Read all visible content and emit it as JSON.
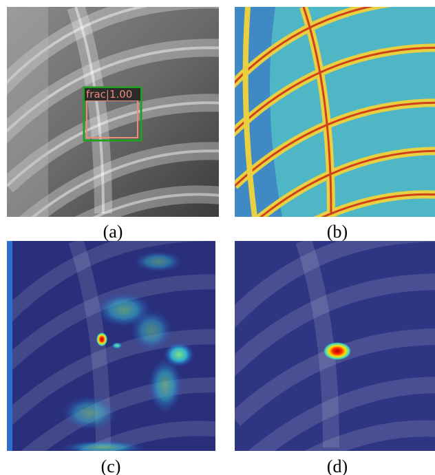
{
  "figure": {
    "panels": [
      {
        "label": "(a)",
        "detection": "frac|1.00"
      },
      {
        "label": "(b)"
      },
      {
        "label": "(c)"
      },
      {
        "label": "(d)"
      }
    ]
  }
}
